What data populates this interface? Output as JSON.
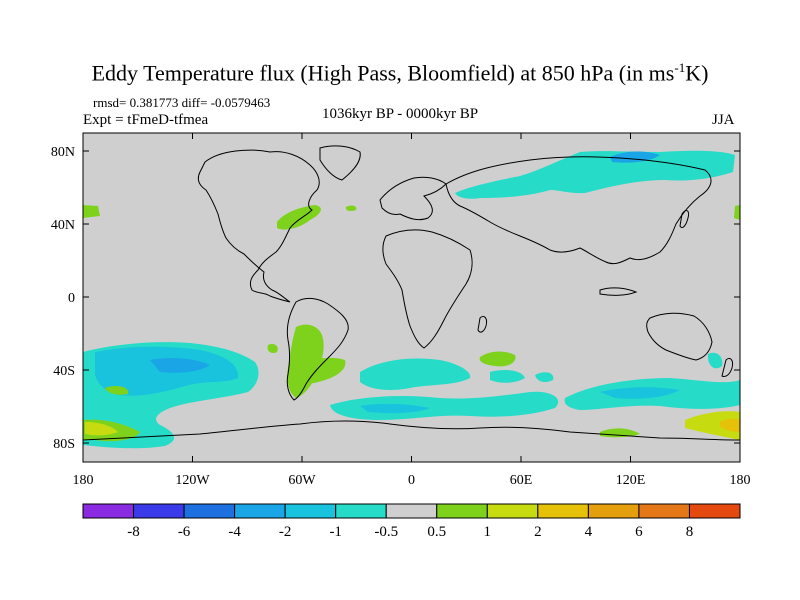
{
  "title": {
    "main": "Eddy Temperature flux (High Pass, Bloomfield) at 850 hPa (in ms",
    "superscript": "-1",
    "tail": "K)"
  },
  "stats": "rmsd= 0.381773 diff= -0.0579463",
  "experiment": "Expt = tFmeD-tfmea",
  "period": "1036kyr BP - 0000kyr BP",
  "season": "JJA",
  "map": {
    "lon_ticks": [
      "180",
      "120W",
      "60W",
      "0",
      "60E",
      "120E",
      "180"
    ],
    "lat_ticks": [
      "80N",
      "40N",
      "0",
      "40S",
      "80S"
    ],
    "background_color": "#cfcfcf"
  },
  "colorbar": {
    "colors": [
      "#8a2be2",
      "#3a3ae8",
      "#1e6fe0",
      "#1aa6e6",
      "#19c3dd",
      "#26dcc8",
      "#cfcfcf",
      "#7ed21c",
      "#c7dc10",
      "#e6c10a",
      "#e4a00c",
      "#e47818",
      "#e44a10"
    ],
    "labels": [
      "-8",
      "-6",
      "-4",
      "-2",
      "-1",
      "-0.5",
      "0.5",
      "1",
      "2",
      "4",
      "6",
      "8"
    ]
  }
}
